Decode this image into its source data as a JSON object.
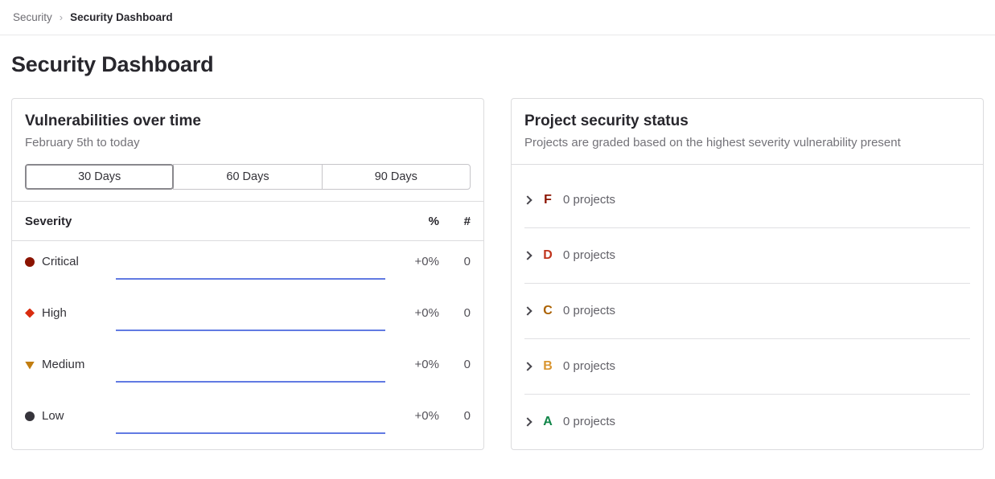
{
  "breadcrumb": {
    "parent": "Security",
    "separator": "›",
    "current": "Security Dashboard"
  },
  "page": {
    "title": "Security Dashboard"
  },
  "vulnerabilities_card": {
    "title": "Vulnerabilities over time",
    "subtitle": "February 5th to today",
    "range_buttons": [
      {
        "label": "30 Days",
        "selected": true
      },
      {
        "label": "60 Days",
        "selected": false
      },
      {
        "label": "90 Days",
        "selected": false
      }
    ],
    "table": {
      "headers": {
        "severity": "Severity",
        "percent": "%",
        "count": "#"
      },
      "sparkline_color": "#617ae2",
      "rows": [
        {
          "severity": "Critical",
          "icon": "severity-critical-icon",
          "color": "#8b1300",
          "percent_change": "+0%",
          "count": "0"
        },
        {
          "severity": "High",
          "icon": "severity-high-icon",
          "color": "#d92c0f",
          "percent_change": "+0%",
          "count": "0"
        },
        {
          "severity": "Medium",
          "icon": "severity-medium-icon",
          "color": "#c17d10",
          "percent_change": "+0%",
          "count": "0"
        },
        {
          "severity": "Low",
          "icon": "severity-low-icon",
          "color": "#36343b",
          "percent_change": "+0%",
          "count": "0"
        }
      ]
    }
  },
  "project_status_card": {
    "title": "Project security status",
    "subtitle": "Projects are graded based on the highest severity vulnerability present",
    "grades": [
      {
        "grade": "F",
        "color": "#8b1300",
        "label": "0 projects"
      },
      {
        "grade": "D",
        "color": "#c0341d",
        "label": "0 projects"
      },
      {
        "grade": "C",
        "color": "#ab6100",
        "label": "0 projects"
      },
      {
        "grade": "B",
        "color": "#d99530",
        "label": "0 projects"
      },
      {
        "grade": "A",
        "color": "#108548",
        "label": "0 projects"
      }
    ]
  }
}
